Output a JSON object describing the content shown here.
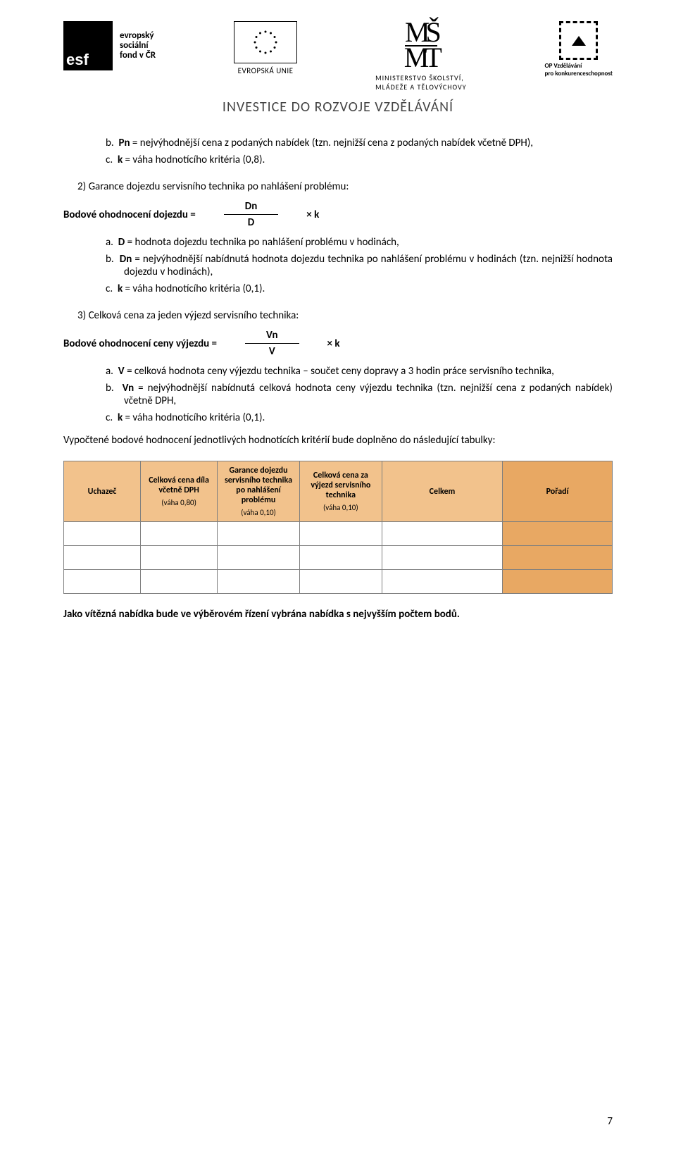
{
  "header": {
    "esf_lines": [
      "evropský",
      "sociální",
      "fond v ČR"
    ],
    "eu_label": "EVROPSKÁ UNIE",
    "msmt_line1": "MINISTERSTVO ŠKOLSTVÍ,",
    "msmt_line2": "MLÁDEŽE A TĚLOVÝCHOVY",
    "opvk_line1": "OP Vzdělávání",
    "opvk_line2": "pro konkurenceschopnost",
    "investice": "INVESTICE DO ROZVOJE VZDĚLÁVÁNÍ"
  },
  "sec1": {
    "b_label": "b.",
    "b": "Pn = nejvýhodnější cena z podaných nabídek (tzn. nejnižší cena z podaných nabídek včetně DPH),",
    "c_label": "c.",
    "c": "k = váha hodnotícího kritéria (0,8)."
  },
  "sec2": {
    "num": "2)",
    "title": "Garance dojezdu servisního technika po nahlášení problému:",
    "formula_label": "Bodové ohodnocení dojezdu =",
    "frac_num": "Dn",
    "frac_den": "D",
    "times_k": "× k",
    "a_label": "a.",
    "a": "D = hodnota dojezdu technika po nahlášení problému v hodinách,",
    "b_label": "b.",
    "b": "Dn = nejvýhodnější nabídnutá hodnota dojezdu technika po nahlášení problému v hodinách (tzn. nejnižší hodnota dojezdu v hodinách),",
    "c_label": "c.",
    "c": "k = váha hodnotícího kritéria (0,1)."
  },
  "sec3": {
    "num": "3)",
    "title": "Celková cena za jeden výjezd servisního technika:",
    "formula_label": "Bodové ohodnocení ceny výjezdu =",
    "frac_num": "Vn",
    "frac_den": "V",
    "times_k": "× k",
    "a_label": "a.",
    "a": "V = celková hodnota ceny výjezdu technika – součet ceny dopravy a 3 hodin práce servisního technika,",
    "b_label": "b.",
    "b": "Vn = nejvýhodnější nabídnutá celková hodnota ceny výjezdu technika (tzn. nejnižší cena z podaných nabídek) včetně DPH,",
    "c_label": "c.",
    "c": "k = váha hodnotícího kritéria (0,1)."
  },
  "para_table_intro": "Vypočtené bodové hodnocení jednotlivých hodnotících kritérií bude doplněno do následující tabulky:",
  "table": {
    "columns": [
      {
        "title": "Uchazeč",
        "sub": ""
      },
      {
        "title": "Celková cena díla včetně DPH",
        "sub": "(váha 0,80)"
      },
      {
        "title": "Garance dojezdu servisního technika po nahlášení problému",
        "sub": "(váha 0,10)"
      },
      {
        "title": "Celková cena za výjezd servisního technika",
        "sub": "(váha 0,10)"
      },
      {
        "title": "Celkem",
        "sub": ""
      },
      {
        "title": "Pořadí",
        "sub": ""
      }
    ],
    "rows": [
      [
        "",
        "",
        "",
        "",
        "",
        ""
      ],
      [
        "",
        "",
        "",
        "",
        "",
        ""
      ],
      [
        "",
        "",
        "",
        "",
        "",
        ""
      ]
    ],
    "header_bg": "#f2c28c",
    "last_col_bg": "#e8a863",
    "border_color": "#7f7f7f"
  },
  "closing": "Jako vítězná nabídka bude ve výběrovém řízení vybrána nabídka s nejvyšším počtem bodů.",
  "page_number": "7"
}
